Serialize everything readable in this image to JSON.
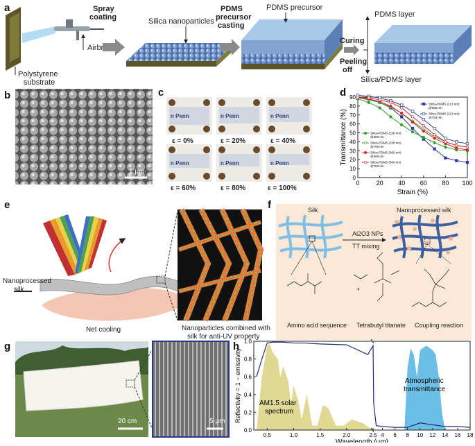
{
  "panel_labels": [
    "a",
    "b",
    "c",
    "d",
    "e",
    "f",
    "g",
    "h"
  ],
  "panel_a": {
    "polystyrene_substrate": [
      "Polystyrene",
      "substrate"
    ],
    "airbrush": "Airbrush",
    "spray_coating": [
      "Spray",
      "coating"
    ],
    "silica_nanoparticles": "Silica nanoparticles",
    "pdms_casting": [
      "PDMS",
      "precursor",
      "casting"
    ],
    "pdms_precursor": "PDMS precursor",
    "curing": "Curing",
    "peeling": [
      "Peeling",
      "off"
    ],
    "pdms_layer": "PDMS layer",
    "silica_pdms_layer": "Silica/PDMS layer"
  },
  "panel_b": {
    "scale_bar": "1 μm"
  },
  "panel_c": {
    "strains": [
      "ε = 0%",
      "ε = 20%",
      "ε = 40%",
      "ε = 60%",
      "ε = 80%",
      "ε = 100%"
    ],
    "tag": "n Penn"
  },
  "panel_e": {
    "nanoprocessed_silk": [
      "Nanoprocessed",
      "silk"
    ],
    "net_cooling": "Net cooling",
    "caption": [
      "Nanoparticles combined with",
      "silk for anti-UV property"
    ]
  },
  "panel_f": {
    "silk": "Silk",
    "nanoprocessed_silk": "Nanoprocessed silk",
    "arrow_top": "Al2O3 NPs",
    "arrow_bottom": "TT mixing",
    "plus": "+",
    "amino": "Amino acid sequence",
    "tetrabutyl": "Tetrabutyl titanate",
    "coupling": "Coupling reaction"
  },
  "panel_g": {
    "scale_left": "20 cm",
    "scale_right": "5 μm"
  },
  "colors": {
    "sky_blue": "#7fbfe6",
    "silk_blue": "#3d5fa3",
    "bg_peach": "#fbe8d6",
    "solar_yellow": "#d8d07a",
    "atm_blue": "#3aa8dc"
  },
  "chart_data": [
    {
      "type": "line",
      "panel": "d",
      "xlabel": "Strain (%)",
      "ylabel": "Transmittance (%)",
      "xlim": [
        0,
        100
      ],
      "ylim": [
        0,
        90
      ],
      "xticks": [
        0,
        20,
        40,
        60,
        80,
        100
      ],
      "yticks": [
        0,
        10,
        20,
        30,
        40,
        50,
        60,
        70,
        80,
        90
      ],
      "legend_placement": "top-right and center-left",
      "series": [
        {
          "name": "Silica-PDMS (221 nm) @500 nm",
          "color": "#2c3e9c",
          "marker": "square-filled",
          "x": [
            0,
            10,
            20,
            30,
            40,
            50,
            60,
            70,
            80,
            90,
            100
          ],
          "y": [
            90,
            88,
            84,
            78,
            68,
            55,
            43,
            32,
            22,
            19,
            17
          ]
        },
        {
          "name": "Silica-PDMS (221 nm) @700 nm",
          "color": "#2c3e9c",
          "marker": "square-open",
          "x": [
            0,
            10,
            20,
            30,
            40,
            50,
            60,
            70,
            80,
            90,
            100
          ],
          "y": [
            92,
            91,
            89,
            86,
            81,
            74,
            65,
            55,
            44,
            40,
            38
          ]
        },
        {
          "name": "Silica-PDMS (258 nm) @500 nm",
          "color": "#2ca02c",
          "marker": "dot-filled",
          "x": [
            0,
            10,
            20,
            30,
            40,
            50,
            60,
            70,
            80,
            90,
            100
          ],
          "y": [
            88,
            84,
            78,
            68,
            59,
            51,
            45,
            39,
            34,
            31,
            30
          ]
        },
        {
          "name": "Silica-PDMS (258 nm) @700 nm",
          "color": "#2ca02c",
          "marker": "dot-open",
          "x": [
            0,
            10,
            20,
            30,
            40,
            50,
            60,
            70,
            80,
            90,
            100
          ],
          "y": [
            89,
            87,
            84,
            79,
            72,
            63,
            54,
            46,
            40,
            36,
            34
          ]
        },
        {
          "name": "Silica-PDMS (306 nm) @500 nm",
          "color": "#d62728",
          "marker": "dot-filled",
          "x": [
            0,
            10,
            20,
            30,
            40,
            50,
            60,
            70,
            80,
            90,
            100
          ],
          "y": [
            90,
            88,
            85,
            80,
            72,
            62,
            52,
            44,
            38,
            33,
            31
          ]
        },
        {
          "name": "Silica-PDMS (306 nm) @700 nm",
          "color": "#d62728",
          "marker": "dot-open",
          "x": [
            0,
            10,
            20,
            30,
            40,
            50,
            60,
            70,
            80,
            90,
            100
          ],
          "y": [
            90,
            89,
            87,
            84,
            78,
            68,
            58,
            48,
            40,
            36,
            34
          ]
        }
      ]
    },
    {
      "type": "area",
      "panel": "h",
      "xlabel": "Wavelength (μm)",
      "ylabel": "Reflectivity = 1 − emissivity",
      "ylim": [
        0,
        1.0
      ],
      "yticks": [
        "0.0",
        "0.2",
        "0.4",
        "0.6",
        "0.8",
        "1.0"
      ],
      "xticks": [
        "0.5",
        "1.0",
        "1.5",
        "2.0",
        "2.5",
        "4",
        "6",
        "8",
        "10",
        "12",
        "14",
        "16",
        "18"
      ],
      "axis_break": "2.5",
      "annotations": [
        "AM1.5 solar spectrum",
        "Atmospheric transmittance"
      ],
      "annotation_text": {
        "solar": [
          "AM1.5 solar",
          "spectrum"
        ],
        "atm": [
          "Atmospheric",
          "transmittance"
        ]
      },
      "series": [
        {
          "name": "reflectivity",
          "color": "#1f2a7a",
          "x": [
            0.3,
            0.4,
            0.5,
            0.6,
            0.8,
            1.0,
            1.2,
            1.5,
            2.0,
            2.4,
            2.5,
            2.6,
            3,
            4,
            6,
            8,
            10,
            12,
            14,
            16,
            18
          ],
          "y": [
            0.6,
            0.8,
            0.98,
            0.99,
            0.99,
            0.98,
            0.98,
            0.97,
            0.96,
            0.85,
            0.95,
            0.3,
            0.05,
            0.04,
            0.03,
            0.03,
            0.08,
            0.06,
            0.04,
            0.04,
            0.03
          ]
        }
      ]
    }
  ]
}
